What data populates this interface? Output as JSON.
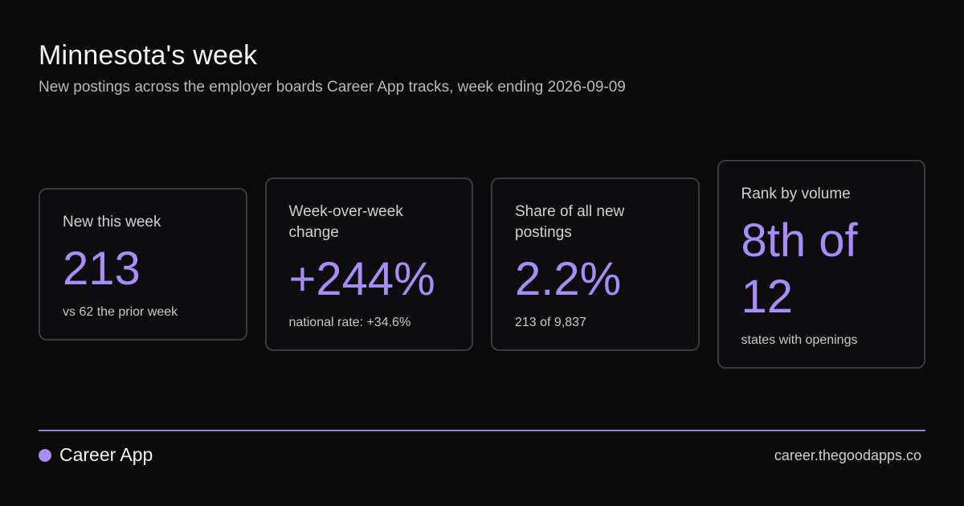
{
  "header": {
    "title": "Minnesota's week",
    "subtitle": "New postings across the employer boards Career App tracks, week ending 2026-09-09"
  },
  "cards": [
    {
      "label": "New this week",
      "value": "213",
      "note": "vs 62 the prior week"
    },
    {
      "label": "Week-over-week change",
      "value": "+244%",
      "note": "national rate: +34.6%"
    },
    {
      "label": "Share of all new postings",
      "value": "2.2%",
      "note": "213 of 9,837"
    },
    {
      "label": "Rank by volume",
      "value": "8th of 12",
      "note": "states with openings"
    }
  ],
  "footer": {
    "brand": "Career App",
    "url": "career.thegoodapps.co"
  },
  "colors": {
    "background": "#0b0b0b",
    "accent": "#a98cf5",
    "card_border": "#3a3a40"
  }
}
